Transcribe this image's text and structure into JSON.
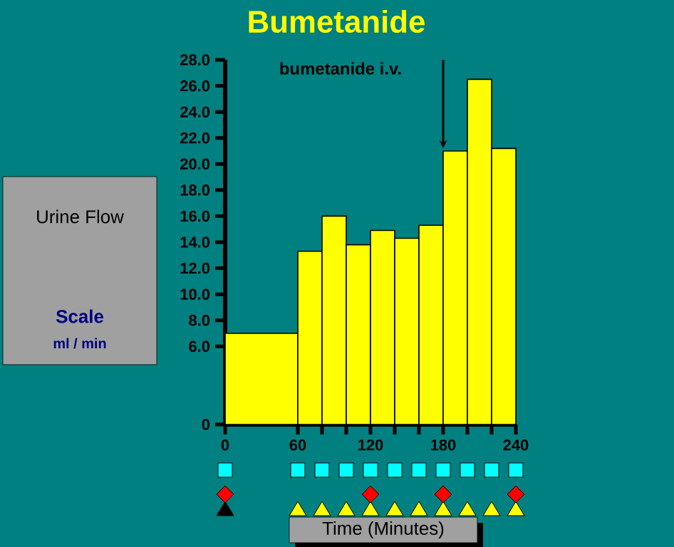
{
  "chart_data": {
    "type": "histogram",
    "title": "Bumetanide",
    "ylabel": "Urine Flow",
    "xlabel": "Time (Minutes)",
    "annotations": [
      "Scale",
      "ml / min",
      "bumetanide i.v."
    ],
    "bins": [
      0,
      60,
      80,
      100,
      120,
      140,
      160,
      180,
      200,
      220,
      240
    ],
    "values": [
      7.0,
      13.3,
      16.0,
      13.8,
      14.9,
      14.3,
      15.3,
      21.0,
      26.5,
      21.2
    ],
    "color": "#ffff00",
    "xlim": [
      0,
      240
    ],
    "ylim": [
      0,
      28
    ],
    "xticks": [
      0,
      60,
      {
        "value": 80,
        "label": null
      },
      {
        "value": 100,
        "label": null
      },
      120,
      {
        "value": 140,
        "label": null
      },
      {
        "value": 160,
        "label": null
      },
      180,
      {
        "value": 200,
        "label": null
      },
      {
        "value": 220,
        "label": null
      },
      240
    ],
    "yticks": [
      0,
      {
        "value": 6,
        "label": "6.0"
      },
      {
        "value": 8,
        "label": "8.0"
      },
      {
        "value": 10,
        "label": "10.0"
      },
      {
        "value": 12,
        "label": "12.0"
      },
      {
        "value": 14,
        "label": "14.0"
      },
      {
        "value": 16,
        "label": "16.0"
      },
      {
        "value": 18,
        "label": "18.0"
      },
      {
        "value": 20,
        "label": "20.0"
      },
      {
        "value": 22,
        "label": "22.0"
      },
      {
        "value": 24,
        "label": "24.0"
      },
      {
        "value": 26,
        "label": "26.0"
      },
      {
        "value": 28,
        "label": "28.0"
      }
    ],
    "grid": false
  }
}
